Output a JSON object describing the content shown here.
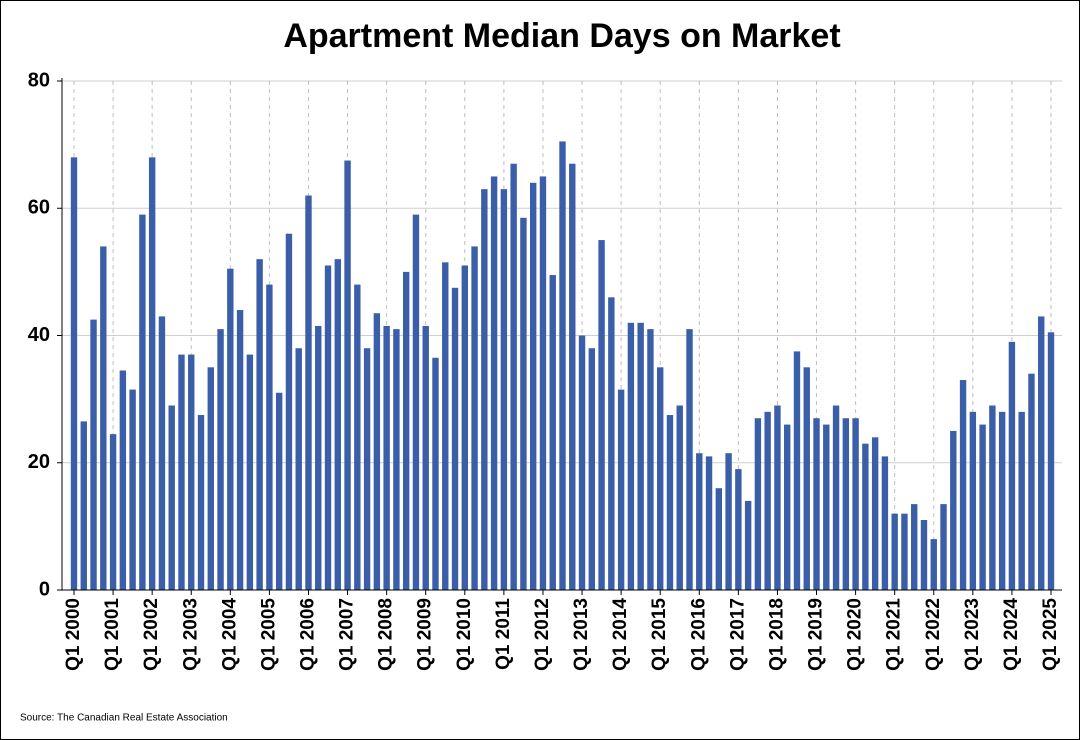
{
  "chart_data": {
    "type": "bar",
    "title": "Apartment Median Days on Market",
    "source": "Source: The Canadian Real Estate Association",
    "categories": [
      "Q1 2000",
      null,
      null,
      null,
      "Q1 2001",
      null,
      null,
      null,
      "Q1 2002",
      null,
      null,
      null,
      "Q1 2003",
      null,
      null,
      null,
      "Q1 2004",
      null,
      null,
      null,
      "Q1 2005",
      null,
      null,
      null,
      "Q1 2006",
      null,
      null,
      null,
      "Q1 2007",
      null,
      null,
      null,
      "Q1 2008",
      null,
      null,
      null,
      "Q1 2009",
      null,
      null,
      null,
      "Q1 2010",
      null,
      null,
      null,
      "Q1 2011",
      null,
      null,
      null,
      "Q1 2012",
      null,
      null,
      null,
      "Q1 2013",
      null,
      null,
      null,
      "Q1 2014",
      null,
      null,
      null,
      "Q1 2015",
      null,
      null,
      null,
      "Q1 2016",
      null,
      null,
      null,
      "Q1 2017",
      null,
      null,
      null,
      "Q1 2018",
      null,
      null,
      null,
      "Q1 2019",
      null,
      null,
      null,
      "Q1 2020",
      null,
      null,
      null,
      "Q1 2021",
      null,
      null,
      null,
      "Q1 2022",
      null,
      null,
      null,
      "Q1 2023",
      null,
      null,
      null,
      "Q1 2024",
      null,
      null,
      null,
      "Q1 2025"
    ],
    "values": [
      68,
      26.5,
      42.5,
      54,
      24.5,
      34.5,
      31.5,
      59,
      68,
      43,
      29,
      37,
      37,
      27.5,
      35,
      41,
      50.5,
      44,
      37,
      52,
      48,
      31,
      56,
      38,
      62,
      41.5,
      51,
      52,
      67.5,
      48,
      38,
      43.5,
      41.5,
      41,
      50,
      59,
      41.5,
      36.5,
      51.5,
      47.5,
      51,
      54,
      63,
      65,
      63,
      67,
      58.5,
      64,
      65,
      49.5,
      70.5,
      67,
      40,
      38,
      55,
      46,
      31.5,
      42,
      42,
      41,
      35,
      27.5,
      29,
      41,
      21.5,
      21,
      16,
      21.5,
      19,
      14,
      27,
      28,
      29,
      26,
      37.5,
      35,
      27,
      26,
      29,
      27,
      27,
      23,
      24,
      21,
      12,
      12,
      13.5,
      11,
      8,
      13.5,
      25,
      33,
      28,
      26,
      29,
      28,
      39,
      28,
      34,
      43,
      40.5
    ],
    "color": "#3a5fa8",
    "ylim": [
      0,
      80
    ],
    "yticks": [
      0,
      20,
      40,
      60,
      80
    ],
    "grid": true
  }
}
